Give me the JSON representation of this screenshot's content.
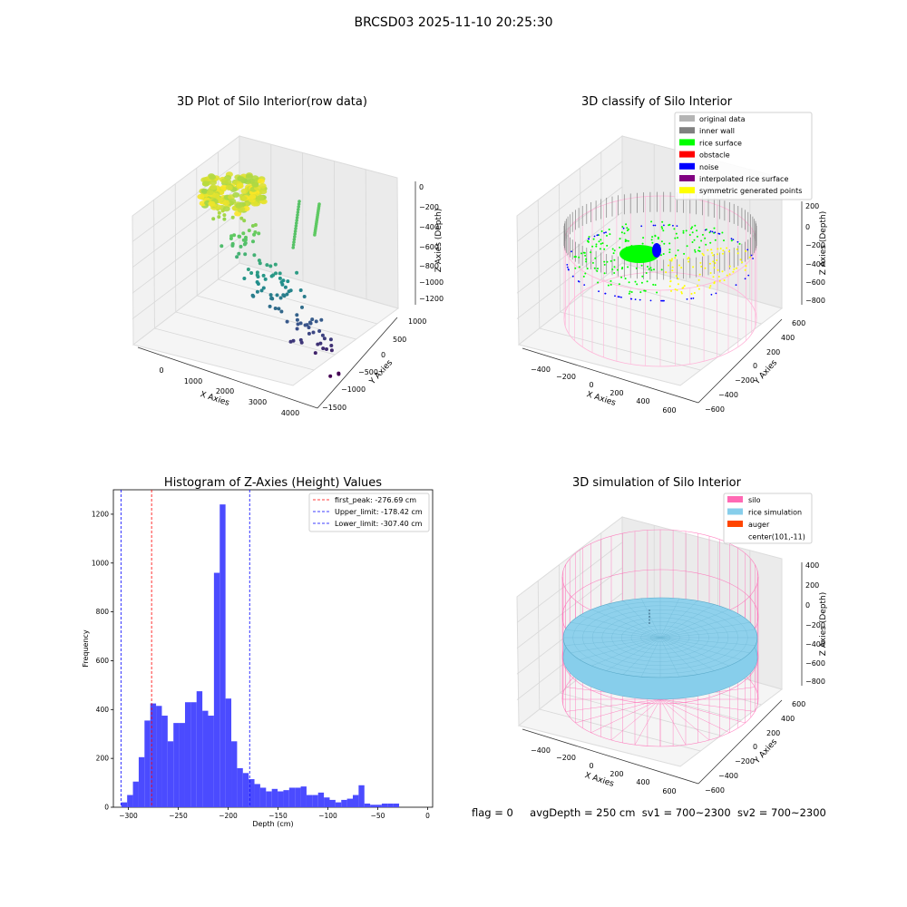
{
  "suptitle": "BRCSD03 2025-11-10 20:25:30",
  "footer": {
    "flag": "flag = 0",
    "avg_depth": "avgDepth = 250 cm",
    "sv1": "sv1 = 700~2300",
    "sv2": "sv2 = 700~2300"
  },
  "chart_data": [
    {
      "type": "scatter",
      "title": "3D Plot of Silo Interior(row data)",
      "xlabel": "X Axies",
      "ylabel": "Y Axies",
      "zlabel": "Z Axies (Depth)",
      "x_ticks": [
        "0",
        "1000",
        "2000",
        "3000",
        "4000"
      ],
      "y_ticks": [
        "1000",
        "500",
        "0",
        "−500",
        "−1000",
        "−1500"
      ],
      "z_ticks": [
        "0",
        "−200",
        "−400",
        "−600",
        "−800",
        "−1000",
        "−1200"
      ],
      "colormap": "viridis"
    },
    {
      "type": "scatter",
      "title": "3D classify of Silo Interior",
      "xlabel": "X Axies",
      "ylabel": "Y Axies",
      "zlabel": "Z Axies (Depth)",
      "x_ticks": [
        "−400",
        "−200",
        "0",
        "200",
        "400",
        "600"
      ],
      "y_ticks": [
        "600",
        "400",
        "200",
        "0",
        "−200",
        "−400",
        "−600"
      ],
      "z_ticks": [
        "200",
        "0",
        "−200",
        "−400",
        "−600",
        "−800"
      ],
      "legend": [
        {
          "label": "original data",
          "color": "#b4b4b4"
        },
        {
          "label": "inner wall",
          "color": "#808080"
        },
        {
          "label": "rice surface",
          "color": "#00ff00"
        },
        {
          "label": "obstacle",
          "color": "#ff0000"
        },
        {
          "label": "noise",
          "color": "#0000ff"
        },
        {
          "label": "interpolated rice surface",
          "color": "#800080"
        },
        {
          "label": "symmetric generated points",
          "color": "#ffff00"
        }
      ],
      "legend_placement": "top-right"
    },
    {
      "type": "bar",
      "title": "Histogram of Z-Axies (Height) Values",
      "xlabel": "Depth (cm)",
      "ylabel": "Frequency",
      "xlim": [
        -315,
        5
      ],
      "ylim": [
        0,
        1300
      ],
      "x_ticks": [
        -300,
        -250,
        -200,
        -150,
        -100,
        -50,
        0
      ],
      "y_ticks": [
        0,
        200,
        400,
        600,
        800,
        1000,
        1200
      ],
      "bin_start": -307,
      "bin_width": 5.8,
      "values": [
        20,
        50,
        105,
        205,
        355,
        425,
        415,
        375,
        270,
        345,
        345,
        430,
        430,
        475,
        395,
        375,
        960,
        1240,
        445,
        270,
        160,
        140,
        115,
        95,
        80,
        65,
        75,
        65,
        70,
        80,
        80,
        85,
        50,
        50,
        60,
        40,
        30,
        20,
        30,
        35,
        50,
        90,
        15,
        10,
        10,
        15,
        15,
        15
      ],
      "bar_color": "#4b4bff",
      "lines": [
        {
          "label": "first_peak: -276.69 cm",
          "x": -276.69,
          "color": "#ff0000"
        },
        {
          "label": "Upper_limit: -178.42 cm",
          "x": -178.42,
          "color": "#0000ff"
        },
        {
          "label": "Lower_limit: -307.40 cm",
          "x": -307.4,
          "color": "#0000ff"
        }
      ],
      "legend_placement": "top-right"
    },
    {
      "type": "surface",
      "title": "3D simulation of Silo Interior",
      "xlabel": "X Axies",
      "ylabel": "Y Axies",
      "zlabel": "Z Axies (Depth)",
      "x_ticks": [
        "−400",
        "−200",
        "0",
        "200",
        "400",
        "600"
      ],
      "y_ticks": [
        "600",
        "400",
        "200",
        "0",
        "−200",
        "−400",
        "−600"
      ],
      "z_ticks": [
        "400",
        "200",
        "0",
        "−200",
        "−400",
        "−600",
        "−800"
      ],
      "legend": [
        {
          "label": "silo",
          "color": "#ff69b4"
        },
        {
          "label": "rice simulation",
          "color": "#87ceeb"
        },
        {
          "label": "auger",
          "color": "#ff4500"
        },
        {
          "label": "center(101,-11)",
          "color": ""
        }
      ],
      "legend_placement": "top-right"
    }
  ]
}
